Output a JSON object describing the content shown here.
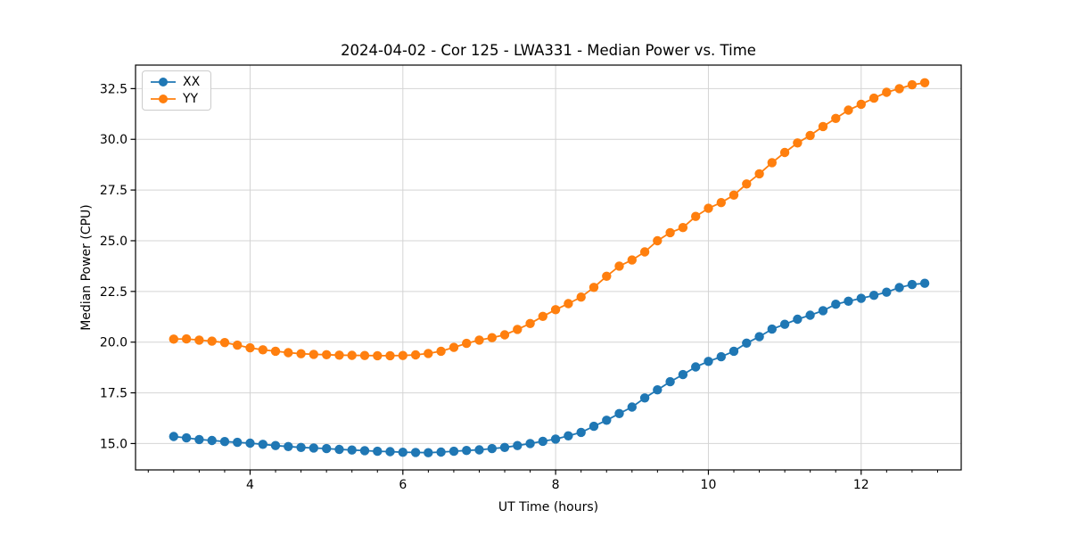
{
  "figure": {
    "title": "2024-04-02 - Cor 125 - LWA331 - Median Power vs. Time",
    "xlabel": "UT Time (hours)",
    "ylabel": "Median Power (CPU)"
  },
  "chart_data": {
    "type": "line",
    "title": "2024-04-02 - Cor 125 - LWA331 - Median Power vs. Time",
    "xlabel": "UT Time (hours)",
    "ylabel": "Median Power (CPU)",
    "xlim": [
      2.5,
      13.31
    ],
    "ylim": [
      13.7,
      33.66
    ],
    "xticks": [
      4,
      6,
      8,
      10,
      12
    ],
    "yticks": [
      15.0,
      17.5,
      20.0,
      22.5,
      25.0,
      27.5,
      30.0,
      32.5
    ],
    "minor_xtick_step": 0.3333,
    "grid": true,
    "grid_color": "#d4d4d4",
    "spine_color": "#000000",
    "legend_position": "upper left",
    "marker": "o",
    "x": [
      3.0,
      3.167,
      3.333,
      3.5,
      3.667,
      3.833,
      4.0,
      4.167,
      4.333,
      4.5,
      4.667,
      4.833,
      5.0,
      5.167,
      5.333,
      5.5,
      5.667,
      5.833,
      6.0,
      6.167,
      6.333,
      6.5,
      6.667,
      6.833,
      7.0,
      7.167,
      7.333,
      7.5,
      7.667,
      7.833,
      8.0,
      8.167,
      8.333,
      8.5,
      8.667,
      8.833,
      9.0,
      9.167,
      9.333,
      9.5,
      9.667,
      9.833,
      10.0,
      10.167,
      10.333,
      10.5,
      10.667,
      10.833,
      11.0,
      11.167,
      11.333,
      11.5,
      11.667,
      11.833,
      12.0,
      12.167,
      12.333,
      12.5,
      12.667,
      12.833
    ],
    "series": [
      {
        "name": "XX",
        "color": "#1f77b4",
        "values": [
          15.35,
          15.28,
          15.2,
          15.15,
          15.1,
          15.06,
          15.02,
          14.96,
          14.9,
          14.85,
          14.81,
          14.78,
          14.75,
          14.71,
          14.68,
          14.65,
          14.62,
          14.6,
          14.57,
          14.56,
          14.55,
          14.58,
          14.62,
          14.66,
          14.69,
          14.75,
          14.81,
          14.9,
          15.0,
          15.11,
          15.22,
          15.38,
          15.55,
          15.85,
          16.15,
          16.48,
          16.8,
          17.25,
          17.65,
          18.05,
          18.4,
          18.78,
          19.05,
          19.28,
          19.55,
          19.95,
          20.27,
          20.64,
          20.88,
          21.13,
          21.33,
          21.55,
          21.87,
          22.02,
          22.16,
          22.31,
          22.46,
          22.69,
          22.84,
          22.9
        ]
      },
      {
        "name": "YY",
        "color": "#ff7f0e",
        "values": [
          20.15,
          20.16,
          20.1,
          20.05,
          19.98,
          19.85,
          19.72,
          19.62,
          19.55,
          19.48,
          19.43,
          19.4,
          19.38,
          19.36,
          19.35,
          19.34,
          19.33,
          19.33,
          19.34,
          19.37,
          19.44,
          19.55,
          19.74,
          19.94,
          20.1,
          20.22,
          20.36,
          20.63,
          20.92,
          21.27,
          21.6,
          21.9,
          22.22,
          22.7,
          23.25,
          23.75,
          24.05,
          24.45,
          25.0,
          25.4,
          25.65,
          26.2,
          26.6,
          26.88,
          27.25,
          27.8,
          28.3,
          28.85,
          29.35,
          29.82,
          30.19,
          30.63,
          31.03,
          31.44,
          31.73,
          32.03,
          32.32,
          32.5,
          32.69,
          32.79
        ]
      }
    ]
  }
}
